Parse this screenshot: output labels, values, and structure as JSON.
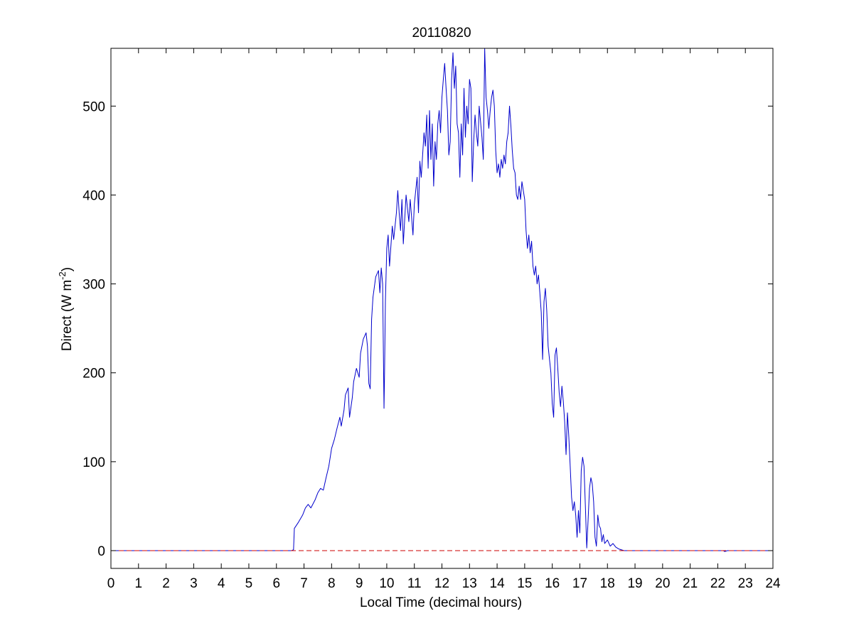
{
  "chart_data": {
    "type": "line",
    "title": "20110820",
    "xlabel": "Local Time (decimal hours)",
    "ylabel_main": "Direct (W m",
    "ylabel_sup": "-2",
    "ylabel_close": ")",
    "xlim": [
      0,
      24
    ],
    "ylim": [
      -20,
      565
    ],
    "xticks": [
      0,
      1,
      2,
      3,
      4,
      5,
      6,
      7,
      8,
      9,
      10,
      11,
      12,
      13,
      14,
      15,
      16,
      17,
      18,
      19,
      20,
      21,
      22,
      23,
      24
    ],
    "yticks": [
      0,
      100,
      200,
      300,
      400,
      500
    ],
    "grid": false,
    "legend": "none",
    "colors": {
      "series": "#0000cc",
      "reference": "#cc0000",
      "axes": "#000000",
      "background": "#ffffff"
    },
    "series": [
      {
        "color": "#0000cc",
        "style": "solid",
        "points": [
          [
            0,
            0
          ],
          [
            6.55,
            0
          ],
          [
            6.62,
            1
          ],
          [
            6.65,
            25
          ],
          [
            6.8,
            32
          ],
          [
            6.95,
            40
          ],
          [
            7.05,
            48
          ],
          [
            7.15,
            52
          ],
          [
            7.25,
            48
          ],
          [
            7.4,
            57
          ],
          [
            7.5,
            65
          ],
          [
            7.6,
            70
          ],
          [
            7.7,
            68
          ],
          [
            7.8,
            82
          ],
          [
            7.9,
            95
          ],
          [
            8.0,
            115
          ],
          [
            8.1,
            125
          ],
          [
            8.2,
            138
          ],
          [
            8.3,
            150
          ],
          [
            8.35,
            140
          ],
          [
            8.45,
            158
          ],
          [
            8.5,
            175
          ],
          [
            8.6,
            183
          ],
          [
            8.65,
            150
          ],
          [
            8.75,
            172
          ],
          [
            8.8,
            190
          ],
          [
            8.9,
            205
          ],
          [
            9.0,
            195
          ],
          [
            9.05,
            222
          ],
          [
            9.15,
            238
          ],
          [
            9.25,
            245
          ],
          [
            9.3,
            230
          ],
          [
            9.35,
            188
          ],
          [
            9.4,
            182
          ],
          [
            9.45,
            260
          ],
          [
            9.5,
            285
          ],
          [
            9.6,
            308
          ],
          [
            9.7,
            315
          ],
          [
            9.75,
            290
          ],
          [
            9.8,
            318
          ],
          [
            9.85,
            300
          ],
          [
            9.9,
            160
          ],
          [
            9.92,
            200
          ],
          [
            9.95,
            280
          ],
          [
            10.0,
            340
          ],
          [
            10.05,
            355
          ],
          [
            10.1,
            320
          ],
          [
            10.2,
            365
          ],
          [
            10.25,
            350
          ],
          [
            10.35,
            380
          ],
          [
            10.4,
            405
          ],
          [
            10.45,
            380
          ],
          [
            10.5,
            360
          ],
          [
            10.55,
            395
          ],
          [
            10.6,
            345
          ],
          [
            10.7,
            400
          ],
          [
            10.8,
            370
          ],
          [
            10.85,
            395
          ],
          [
            10.95,
            355
          ],
          [
            11.0,
            390
          ],
          [
            11.1,
            420
          ],
          [
            11.15,
            380
          ],
          [
            11.2,
            438
          ],
          [
            11.25,
            420
          ],
          [
            11.35,
            470
          ],
          [
            11.4,
            455
          ],
          [
            11.45,
            490
          ],
          [
            11.5,
            430
          ],
          [
            11.55,
            495
          ],
          [
            11.6,
            440
          ],
          [
            11.65,
            480
          ],
          [
            11.7,
            410
          ],
          [
            11.75,
            460
          ],
          [
            11.8,
            440
          ],
          [
            11.85,
            480
          ],
          [
            11.9,
            495
          ],
          [
            11.95,
            470
          ],
          [
            12.0,
            510
          ],
          [
            12.05,
            530
          ],
          [
            12.1,
            548
          ],
          [
            12.15,
            520
          ],
          [
            12.2,
            495
          ],
          [
            12.25,
            445
          ],
          [
            12.3,
            460
          ],
          [
            12.35,
            530
          ],
          [
            12.4,
            560
          ],
          [
            12.45,
            520
          ],
          [
            12.5,
            545
          ],
          [
            12.55,
            480
          ],
          [
            12.6,
            470
          ],
          [
            12.65,
            420
          ],
          [
            12.7,
            480
          ],
          [
            12.75,
            445
          ],
          [
            12.8,
            520
          ],
          [
            12.85,
            465
          ],
          [
            12.9,
            500
          ],
          [
            12.95,
            480
          ],
          [
            13.0,
            530
          ],
          [
            13.05,
            520
          ],
          [
            13.1,
            415
          ],
          [
            13.15,
            460
          ],
          [
            13.2,
            490
          ],
          [
            13.25,
            470
          ],
          [
            13.3,
            455
          ],
          [
            13.35,
            500
          ],
          [
            13.45,
            465
          ],
          [
            13.5,
            440
          ],
          [
            13.55,
            565
          ],
          [
            13.6,
            510
          ],
          [
            13.65,
            495
          ],
          [
            13.7,
            475
          ],
          [
            13.75,
            495
          ],
          [
            13.8,
            510
          ],
          [
            13.85,
            518
          ],
          [
            13.9,
            500
          ],
          [
            13.95,
            450
          ],
          [
            14.0,
            425
          ],
          [
            14.05,
            435
          ],
          [
            14.1,
            420
          ],
          [
            14.15,
            440
          ],
          [
            14.2,
            430
          ],
          [
            14.25,
            445
          ],
          [
            14.3,
            435
          ],
          [
            14.35,
            460
          ],
          [
            14.4,
            470
          ],
          [
            14.45,
            500
          ],
          [
            14.5,
            478
          ],
          [
            14.55,
            450
          ],
          [
            14.6,
            430
          ],
          [
            14.65,
            425
          ],
          [
            14.7,
            400
          ],
          [
            14.75,
            395
          ],
          [
            14.8,
            410
          ],
          [
            14.85,
            395
          ],
          [
            14.9,
            415
          ],
          [
            14.95,
            405
          ],
          [
            15.0,
            395
          ],
          [
            15.05,
            360
          ],
          [
            15.1,
            340
          ],
          [
            15.15,
            355
          ],
          [
            15.2,
            335
          ],
          [
            15.25,
            348
          ],
          [
            15.3,
            320
          ],
          [
            15.35,
            310
          ],
          [
            15.4,
            320
          ],
          [
            15.45,
            300
          ],
          [
            15.5,
            310
          ],
          [
            15.55,
            290
          ],
          [
            15.6,
            268
          ],
          [
            15.65,
            215
          ],
          [
            15.7,
            280
          ],
          [
            15.75,
            295
          ],
          [
            15.8,
            270
          ],
          [
            15.85,
            230
          ],
          [
            15.9,
            215
          ],
          [
            15.95,
            200
          ],
          [
            16.0,
            165
          ],
          [
            16.05,
            150
          ],
          [
            16.1,
            220
          ],
          [
            16.15,
            228
          ],
          [
            16.2,
            205
          ],
          [
            16.25,
            178
          ],
          [
            16.3,
            162
          ],
          [
            16.35,
            185
          ],
          [
            16.4,
            168
          ],
          [
            16.45,
            145
          ],
          [
            16.5,
            108
          ],
          [
            16.55,
            155
          ],
          [
            16.6,
            128
          ],
          [
            16.65,
            95
          ],
          [
            16.7,
            60
          ],
          [
            16.75,
            45
          ],
          [
            16.8,
            55
          ],
          [
            16.85,
            40
          ],
          [
            16.9,
            15
          ],
          [
            16.95,
            45
          ],
          [
            17.0,
            20
          ],
          [
            17.05,
            90
          ],
          [
            17.1,
            105
          ],
          [
            17.15,
            95
          ],
          [
            17.2,
            50
          ],
          [
            17.25,
            3
          ],
          [
            17.3,
            35
          ],
          [
            17.35,
            70
          ],
          [
            17.4,
            82
          ],
          [
            17.45,
            75
          ],
          [
            17.5,
            55
          ],
          [
            17.55,
            15
          ],
          [
            17.6,
            5
          ],
          [
            17.65,
            40
          ],
          [
            17.7,
            28
          ],
          [
            17.75,
            25
          ],
          [
            17.8,
            10
          ],
          [
            17.85,
            18
          ],
          [
            17.9,
            8
          ],
          [
            18.0,
            12
          ],
          [
            18.1,
            5
          ],
          [
            18.2,
            8
          ],
          [
            18.3,
            4
          ],
          [
            18.4,
            2
          ],
          [
            18.5,
            1
          ],
          [
            18.6,
            0
          ],
          [
            22.2,
            0
          ],
          [
            22.25,
            -1
          ],
          [
            22.35,
            0
          ],
          [
            24,
            0
          ]
        ]
      },
      {
        "color": "#cc0000",
        "style": "dashed",
        "points": [
          [
            0,
            0
          ],
          [
            24,
            0
          ]
        ]
      }
    ]
  }
}
